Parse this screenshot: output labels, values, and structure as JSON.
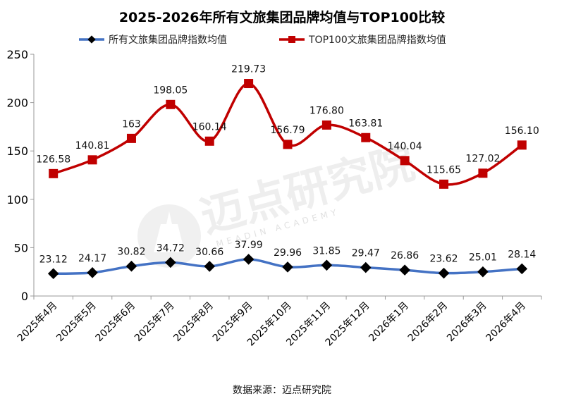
{
  "source": "数据来源：迈点研究院",
  "watermark": {
    "cn": "迈点研究院",
    "en": "MEADIN ACADEMY"
  },
  "chart_data": {
    "type": "line",
    "title": "2025-2026年所有文旅集团品牌均值与TOP100比较",
    "xlabel": "",
    "ylabel": "",
    "ylim": [
      0,
      250
    ],
    "yticks": [
      0,
      50,
      100,
      150,
      200,
      250
    ],
    "grid": false,
    "legend_position": "top",
    "categories": [
      "2025年4月",
      "2025年5月",
      "2025年6月",
      "2025年7月",
      "2025年8月",
      "2025年9月",
      "2025年10月",
      "2025年11月",
      "2025年12月",
      "2026年1月",
      "2026年2月",
      "2026年3月",
      "2026年4月"
    ],
    "series": [
      {
        "name": "所有文旅集团品牌指数均值",
        "color": "#4472C4",
        "marker": "diamond",
        "marker_color": "#000000",
        "values": [
          23.12,
          24.17,
          30.82,
          34.72,
          30.66,
          37.99,
          29.96,
          31.85,
          29.47,
          26.86,
          23.62,
          25.01,
          28.14
        ],
        "labels": [
          "23.12",
          "24.17",
          "30.82",
          "34.72",
          "30.66",
          "37.99",
          "29.96",
          "31.85",
          "29.47",
          "26.86",
          "23.62",
          "25.01",
          "28.14"
        ]
      },
      {
        "name": "TOP100文旅集团品牌指数均值",
        "color": "#C00000",
        "marker": "square",
        "marker_color": "#C00000",
        "values": [
          126.58,
          140.81,
          163,
          198.05,
          160.14,
          219.73,
          156.79,
          176.8,
          163.81,
          140.04,
          115.65,
          127.02,
          156.1
        ],
        "labels": [
          "126.58",
          "140.81",
          "163",
          "198.05",
          "160.14",
          "219.73",
          "156.79",
          "176.80",
          "163.81",
          "140.04",
          "115.65",
          "127.02",
          "156.10"
        ]
      }
    ]
  }
}
